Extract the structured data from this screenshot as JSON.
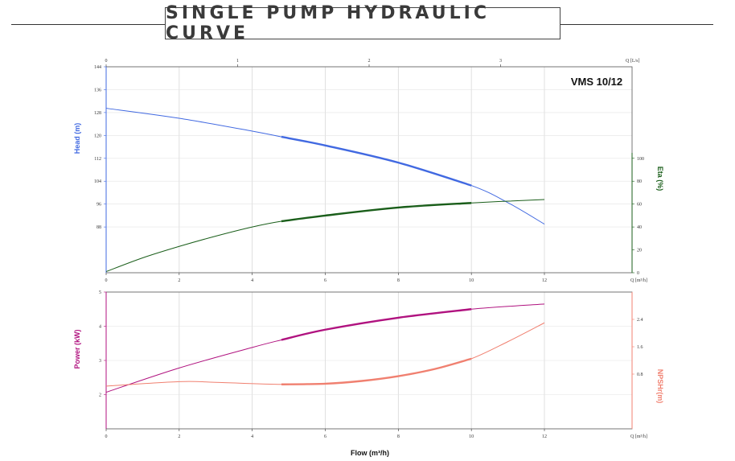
{
  "title": "SINGLE PUMP HYDRAULIC CURVE",
  "model": "VMS 10/12",
  "colors": {
    "head": "#4169e1",
    "eta": "#1a5e1a",
    "power": "#b0127f",
    "npsh": "#f08070"
  },
  "chart_data": [
    {
      "type": "line",
      "panel": "top",
      "x_bottom_label": "Q [m³/h]",
      "x_bottom_ticks": [
        "0",
        "2",
        "4",
        "6",
        "8",
        "10",
        "12"
      ],
      "x_bottom_range": [
        0,
        14.4
      ],
      "x_top_label": "Q [L/s]",
      "x_top_ticks": [
        "0",
        "1",
        "2",
        "3"
      ],
      "ylabel_left": "Head (m)",
      "y_left_ticks": [
        "88",
        "96",
        "104",
        "112",
        "120",
        "128",
        "136",
        "144"
      ],
      "y_left_range": [
        72,
        144
      ],
      "ylabel_right": "Eta (%)",
      "y_right_ticks": [
        "0",
        "20",
        "40",
        "60",
        "80",
        "100"
      ],
      "y_right_range": [
        0,
        180
      ],
      "grid": true,
      "series": [
        {
          "name": "Head (m)",
          "axis": "left",
          "x": [
            0,
            2,
            4,
            4.8,
            6,
            8,
            10,
            11,
            12
          ],
          "y": [
            129.5,
            126,
            121.5,
            119.5,
            116.5,
            110.5,
            102.5,
            96.5,
            89
          ],
          "bold_range": [
            4.8,
            10
          ]
        },
        {
          "name": "Eta (%)",
          "axis": "right",
          "x": [
            0,
            1,
            2,
            3,
            4,
            4.8,
            6,
            8,
            10,
            12
          ],
          "y": [
            1,
            13,
            23,
            32,
            40,
            45,
            50,
            57,
            61,
            64
          ],
          "bold_range": [
            4.8,
            10
          ]
        }
      ]
    },
    {
      "type": "line",
      "panel": "bottom",
      "xlabel": "Flow (m³/h)",
      "x_ticks": [
        "0",
        "2",
        "4",
        "6",
        "8",
        "10",
        "12"
      ],
      "x_unit_label": "Q [m³/h]",
      "x_range": [
        0,
        14.4
      ],
      "ylabel_left": "Power (kW)",
      "y_left_ticks": [
        "2",
        "3",
        "4",
        "5"
      ],
      "y_left_range": [
        1,
        5
      ],
      "ylabel_right": "NPSHr(m)",
      "y_right_ticks": [
        "0.8",
        "1.6",
        "2.4"
      ],
      "y_right_range": [
        -0.8,
        3.2
      ],
      "grid": true,
      "series": [
        {
          "name": "Power (kW)",
          "axis": "left",
          "x": [
            0,
            2,
            4,
            4.8,
            6,
            8,
            10,
            12
          ],
          "y": [
            2.07,
            2.78,
            3.38,
            3.6,
            3.9,
            4.25,
            4.5,
            4.65
          ],
          "bold_range": [
            4.8,
            10
          ]
        },
        {
          "name": "NPSHr(m)",
          "axis": "right",
          "x": [
            0,
            2,
            3,
            4.8,
            6,
            7,
            8,
            9,
            10,
            11,
            12
          ],
          "y": [
            0.45,
            0.58,
            0.56,
            0.5,
            0.52,
            0.6,
            0.74,
            0.95,
            1.25,
            1.75,
            2.3
          ],
          "bold_range": [
            4.8,
            10
          ]
        }
      ]
    }
  ]
}
